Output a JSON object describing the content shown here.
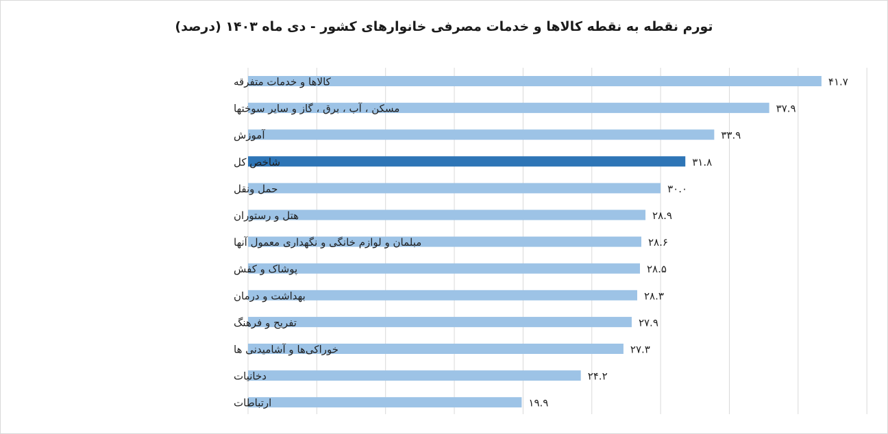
{
  "chart_data": {
    "type": "bar",
    "orientation": "horizontal",
    "title": "تورم نقطه به نقطه کالاها و خدمات مصرفی خانوارهای کشور - دی ماه ۱۴۰۳ (درصد)",
    "xlim": [
      0,
      45
    ],
    "grid": true,
    "legend": "none",
    "categories": [
      "کالاها و خدمات متفرقه",
      "مسکن ، آب ، برق ، گاز و سایر سوختها",
      "آموزش",
      "شاخص کل",
      "حمل ونقل",
      "هتل و رستوران",
      "مبلمان و لوازم خانگی و نگهداری معمول آنها",
      "پوشاک و کفش",
      "بهداشت و درمان",
      "تفریح و فرهنگ",
      "خوراکی‌ها و آشامیدنی ها",
      "دخانیات",
      "ارتباطات"
    ],
    "values": [
      41.7,
      37.9,
      33.9,
      31.8,
      30.0,
      28.9,
      28.6,
      28.5,
      28.3,
      27.9,
      27.3,
      24.2,
      19.9
    ],
    "value_labels": [
      "۴۱.۷",
      "۳۷.۹",
      "۳۳.۹",
      "۳۱.۸",
      "۳۰.۰",
      "۲۸.۹",
      "۲۸.۶",
      "۲۸.۵",
      "۲۸.۳",
      "۲۷.۹",
      "۲۷.۳",
      "۲۴.۲",
      "۱۹.۹"
    ],
    "highlight_index": 3,
    "colors": {
      "bar": "#9dc3e6",
      "highlight": "#2e75b6",
      "grid": "#d9d9d9"
    }
  }
}
